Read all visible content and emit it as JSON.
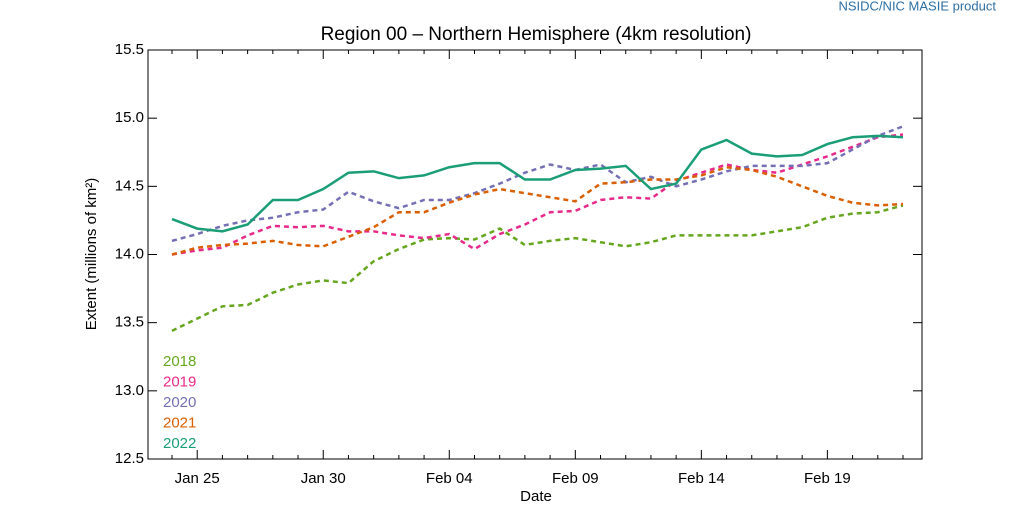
{
  "chart_data": {
    "type": "line",
    "source": "NSIDC/NIC MASIE product",
    "title": "Region 00 – Northern Hemisphere (4km resolution)",
    "x_label": "Date",
    "y_label": "Extent (millions of km²)",
    "categories": [
      null,
      "Jan 25",
      null,
      null,
      null,
      null,
      "Jan 30",
      null,
      null,
      null,
      null,
      "Feb 04",
      null,
      null,
      null,
      null,
      "Feb 09",
      null,
      null,
      null,
      null,
      "Feb 14",
      null,
      null,
      null,
      null,
      "Feb 19",
      null,
      null,
      null
    ],
    "ylim": [
      12.5,
      15.5
    ],
    "yticks": [
      {
        "value": 12.5,
        "label": "12.5"
      },
      {
        "value": 13,
        "label": "13.0"
      },
      {
        "value": 13.5,
        "label": "13.5"
      },
      {
        "value": 14,
        "label": "14.0"
      },
      {
        "value": 14.5,
        "label": "14.5"
      },
      {
        "value": 15,
        "label": "15.0"
      },
      {
        "value": 15.5,
        "label": "15.5"
      }
    ],
    "legend": "lower left",
    "series": [
      {
        "name": "2018",
        "color": "#66a61e",
        "dash": true,
        "values": [
          13.44,
          13.53,
          13.62,
          13.63,
          13.72,
          13.78,
          13.81,
          13.79,
          13.95,
          14.04,
          14.11,
          14.12,
          14.11,
          14.19,
          14.07,
          14.1,
          14.12,
          14.09,
          14.06,
          14.09,
          14.14,
          14.14,
          14.14,
          14.14,
          14.17,
          14.2,
          14.27,
          14.3,
          14.31,
          14.36
        ]
      },
      {
        "name": "2019",
        "color": "#e7298a",
        "dash": true,
        "values": [
          14.0,
          14.03,
          14.05,
          14.14,
          14.21,
          14.2,
          14.21,
          14.17,
          14.17,
          14.14,
          14.12,
          14.15,
          14.04,
          14.15,
          14.22,
          14.31,
          14.32,
          14.4,
          14.42,
          14.41,
          14.54,
          14.6,
          14.66,
          14.62,
          14.6,
          14.66,
          14.72,
          14.79,
          14.86,
          14.88
        ]
      },
      {
        "name": "2020",
        "color": "#7570b3",
        "dash": true,
        "values": [
          14.1,
          14.15,
          14.21,
          14.25,
          14.27,
          14.31,
          14.33,
          14.46,
          14.39,
          14.34,
          14.4,
          14.4,
          14.45,
          14.52,
          14.6,
          14.66,
          14.62,
          14.66,
          14.53,
          14.57,
          14.5,
          14.55,
          14.61,
          14.65,
          14.65,
          14.65,
          14.67,
          14.77,
          14.87,
          14.94
        ]
      },
      {
        "name": "2021",
        "color": "#d95f02",
        "dash": true,
        "values": [
          14.0,
          14.05,
          14.07,
          14.08,
          14.1,
          14.07,
          14.06,
          14.13,
          14.2,
          14.31,
          14.31,
          14.38,
          14.44,
          14.48,
          14.45,
          14.42,
          14.39,
          14.52,
          14.53,
          14.55,
          14.55,
          14.58,
          14.64,
          14.62,
          14.57,
          14.5,
          14.43,
          14.38,
          14.36,
          14.37
        ]
      },
      {
        "name": "2022",
        "color": "#1b9e77",
        "dash": false,
        "values": [
          14.26,
          14.19,
          14.17,
          14.22,
          14.4,
          14.4,
          14.48,
          14.6,
          14.61,
          14.56,
          14.58,
          14.64,
          14.67,
          14.67,
          14.55,
          14.55,
          14.62,
          14.63,
          14.65,
          14.48,
          14.52,
          14.77,
          14.84,
          14.74,
          14.72,
          14.73,
          14.81,
          14.86,
          14.87,
          14.86
        ]
      }
    ]
  }
}
